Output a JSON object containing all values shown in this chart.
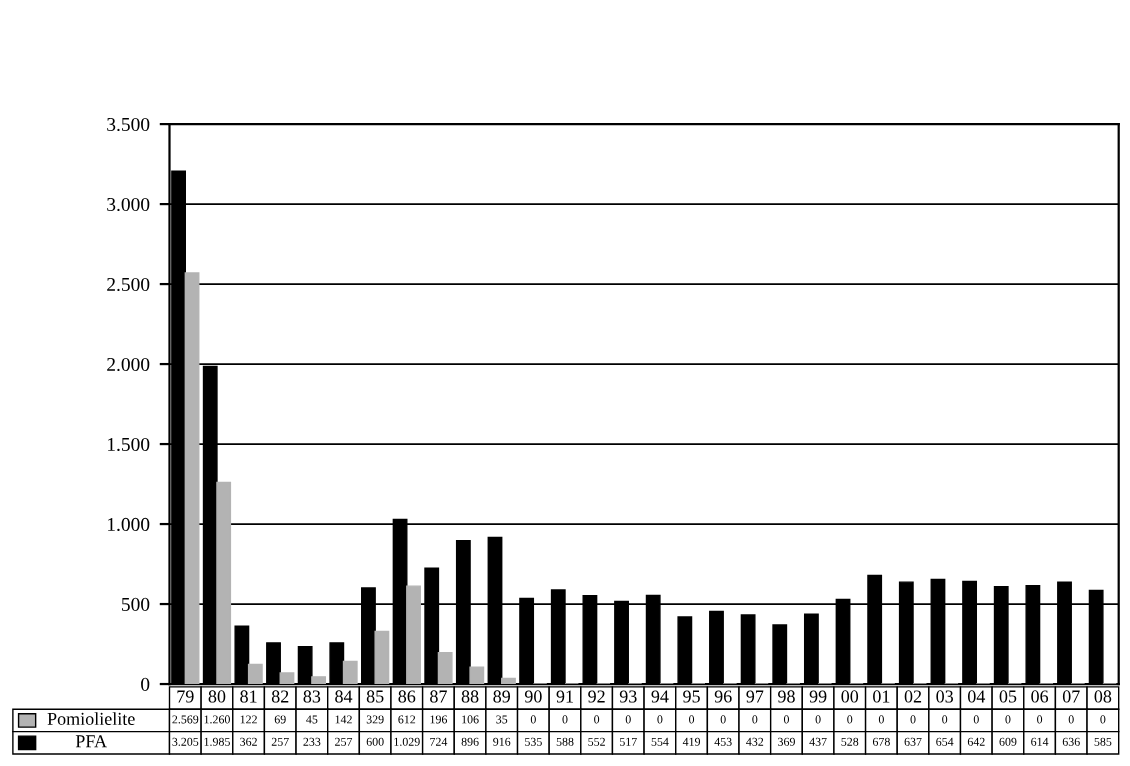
{
  "chart_data": {
    "type": "bar",
    "categories": [
      "79",
      "80",
      "81",
      "82",
      "83",
      "84",
      "85",
      "86",
      "87",
      "88",
      "89",
      "90",
      "91",
      "92",
      "93",
      "94",
      "95",
      "96",
      "97",
      "98",
      "99",
      "00",
      "01",
      "02",
      "03",
      "04",
      "05",
      "06",
      "07",
      "08"
    ],
    "series": [
      {
        "name": "PFA",
        "color": "#000000",
        "values": [
          3205,
          1985,
          362,
          257,
          233,
          257,
          600,
          1029,
          724,
          896,
          916,
          535,
          588,
          552,
          517,
          554,
          419,
          453,
          432,
          369,
          437,
          528,
          678,
          637,
          654,
          642,
          609,
          614,
          636,
          585
        ],
        "value_labels": [
          "3.205",
          "1.985",
          "362",
          "257",
          "233",
          "257",
          "600",
          "1.029",
          "724",
          "896",
          "916",
          "535",
          "588",
          "552",
          "517",
          "554",
          "419",
          "453",
          "432",
          "369",
          "437",
          "528",
          "678",
          "637",
          "654",
          "642",
          "609",
          "614",
          "636",
          "585"
        ]
      },
      {
        "name": "Pomiolielite",
        "color": "#b3b3b3",
        "values": [
          2569,
          1260,
          122,
          69,
          45,
          142,
          329,
          612,
          196,
          106,
          35,
          0,
          0,
          0,
          0,
          0,
          0,
          0,
          0,
          0,
          0,
          0,
          0,
          0,
          0,
          0,
          0,
          0,
          0,
          0
        ],
        "value_labels": [
          "2.569",
          "1.260",
          "122",
          "69",
          "45",
          "142",
          "329",
          "612",
          "196",
          "106",
          "35",
          "0",
          "0",
          "0",
          "0",
          "0",
          "0",
          "0",
          "0",
          "0",
          "0",
          "0",
          "0",
          "0",
          "0",
          "0",
          "0",
          "0",
          "0",
          "0"
        ]
      }
    ],
    "ylim": [
      0,
      3500
    ],
    "yticks": [
      0,
      500,
      {
        "value": 1000,
        "label": "1.000"
      },
      {
        "value": 1500,
        "label": "1.500"
      },
      {
        "value": 2000,
        "label": "2.000"
      },
      {
        "value": 2500,
        "label": "2.500"
      },
      {
        "value": 3000,
        "label": "3.000"
      },
      {
        "value": 3500,
        "label": "3.500"
      }
    ],
    "grid": "y",
    "legend": "bottom"
  }
}
